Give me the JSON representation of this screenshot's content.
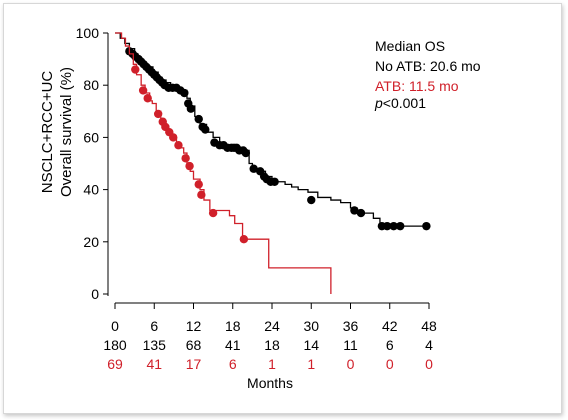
{
  "chart_data": {
    "type": "line",
    "subtype": "kaplan-meier",
    "title": "",
    "ylabel_line1": "NSCLC+RCC+UC",
    "ylabel_line2": "Overall survival (%)",
    "xlabel": "Months",
    "xlim": [
      0,
      48
    ],
    "ylim": [
      0,
      100
    ],
    "xticks": [
      0,
      6,
      12,
      18,
      24,
      30,
      36,
      42,
      48
    ],
    "yticks": [
      0,
      20,
      40,
      60,
      80,
      100
    ],
    "grid": false,
    "legend_placement": "top-right",
    "annotation": {
      "header": "Median OS",
      "no_atb": "No ATB: 20.6 mo",
      "atb": "ATB: 11.5 mo",
      "p_prefix": "p",
      "p_value": "<0.001"
    },
    "series": [
      {
        "color": "#000000",
        "steps": [
          [
            0,
            100
          ],
          [
            0.8,
            98
          ],
          [
            1.5,
            96
          ],
          [
            2.2,
            94
          ],
          [
            3,
            92
          ],
          [
            3.5,
            90
          ],
          [
            4.2,
            88
          ],
          [
            5,
            87
          ],
          [
            5.8,
            85
          ],
          [
            6.6,
            83
          ],
          [
            7.2,
            82
          ],
          [
            7.8,
            81
          ],
          [
            8.5,
            80
          ],
          [
            9.5,
            79
          ],
          [
            10.2,
            78
          ],
          [
            11,
            75
          ],
          [
            11.5,
            72
          ],
          [
            12.2,
            68
          ],
          [
            13,
            65
          ],
          [
            14,
            62
          ],
          [
            15,
            60
          ],
          [
            16,
            57
          ],
          [
            17,
            57
          ],
          [
            18,
            56
          ],
          [
            19.5,
            55
          ],
          [
            20.5,
            50
          ],
          [
            21,
            48
          ],
          [
            22,
            47
          ],
          [
            23,
            45
          ],
          [
            24,
            43
          ],
          [
            26,
            42
          ],
          [
            27,
            41
          ],
          [
            28,
            40
          ],
          [
            29.5,
            39
          ],
          [
            31,
            37
          ],
          [
            33,
            36
          ],
          [
            34.5,
            35
          ],
          [
            36,
            33
          ],
          [
            37,
            31
          ],
          [
            39.5,
            29
          ],
          [
            40.5,
            26
          ],
          [
            48,
            26
          ]
        ],
        "censored": [
          [
            2.2,
            93
          ],
          [
            2.7,
            92
          ],
          [
            3.1,
            91
          ],
          [
            3.6,
            90
          ],
          [
            4.0,
            89
          ],
          [
            4.4,
            88
          ],
          [
            4.8,
            87
          ],
          [
            5.2,
            86
          ],
          [
            5.6,
            85
          ],
          [
            6.0,
            84
          ],
          [
            6.4,
            83
          ],
          [
            6.8,
            82
          ],
          [
            7.2,
            81
          ],
          [
            7.6,
            80
          ],
          [
            8.2,
            79
          ],
          [
            8.8,
            79
          ],
          [
            9.4,
            79
          ],
          [
            10.0,
            78
          ],
          [
            10.6,
            77
          ],
          [
            11.2,
            73
          ],
          [
            11.6,
            71
          ],
          [
            12.8,
            67
          ],
          [
            13.4,
            64
          ],
          [
            13.8,
            63
          ],
          [
            15.2,
            58
          ],
          [
            16.0,
            57
          ],
          [
            16.6,
            57
          ],
          [
            17.2,
            56
          ],
          [
            17.8,
            56
          ],
          [
            18.2,
            56
          ],
          [
            18.6,
            56
          ],
          [
            19.0,
            55
          ],
          [
            19.6,
            55
          ],
          [
            20.0,
            54
          ],
          [
            21.2,
            48
          ],
          [
            22.2,
            47
          ],
          [
            22.8,
            45
          ],
          [
            23.2,
            44
          ],
          [
            23.8,
            43
          ],
          [
            24.4,
            43
          ],
          [
            30.0,
            36
          ],
          [
            36.6,
            32
          ],
          [
            37.6,
            31
          ],
          [
            40.8,
            26
          ],
          [
            41.6,
            26
          ],
          [
            42.6,
            26
          ],
          [
            43.6,
            26
          ],
          [
            47.6,
            26
          ]
        ]
      },
      {
        "color": "#d0202a",
        "steps": [
          [
            0,
            100
          ],
          [
            1,
            98
          ],
          [
            1.6,
            95
          ],
          [
            2.2,
            92
          ],
          [
            2.8,
            88
          ],
          [
            3.3,
            84
          ],
          [
            4,
            80
          ],
          [
            4.6,
            77
          ],
          [
            5.3,
            74
          ],
          [
            5.7,
            73
          ],
          [
            6.3,
            70
          ],
          [
            7,
            67
          ],
          [
            7.6,
            64
          ],
          [
            8.2,
            62
          ],
          [
            8.8,
            60
          ],
          [
            9.4,
            58
          ],
          [
            10,
            56
          ],
          [
            10.5,
            54
          ],
          [
            11,
            50
          ],
          [
            11.5,
            47
          ],
          [
            12,
            44
          ],
          [
            13,
            40
          ],
          [
            13.6,
            36
          ],
          [
            14.5,
            32
          ],
          [
            17.5,
            30
          ],
          [
            18.3,
            27
          ],
          [
            19.5,
            21
          ],
          [
            23.5,
            10
          ],
          [
            33,
            0
          ]
        ],
        "censored": [
          [
            3.1,
            86
          ],
          [
            4.3,
            78
          ],
          [
            5.0,
            75
          ],
          [
            6.6,
            69
          ],
          [
            7.3,
            66
          ],
          [
            7.7,
            64
          ],
          [
            8.3,
            62
          ],
          [
            8.9,
            60
          ],
          [
            9.7,
            57
          ],
          [
            10.8,
            52
          ],
          [
            11.4,
            49
          ],
          [
            12.8,
            42
          ],
          [
            13.2,
            38
          ],
          [
            15.0,
            31
          ],
          [
            19.7,
            21
          ]
        ]
      }
    ],
    "at_risk": {
      "no_atb": [
        "180",
        "135",
        "68",
        "41",
        "18",
        "14",
        "11",
        "6",
        "4"
      ],
      "atb": [
        "69",
        "41",
        "17",
        "6",
        "1",
        "1",
        "0",
        "0",
        "0"
      ]
    }
  }
}
